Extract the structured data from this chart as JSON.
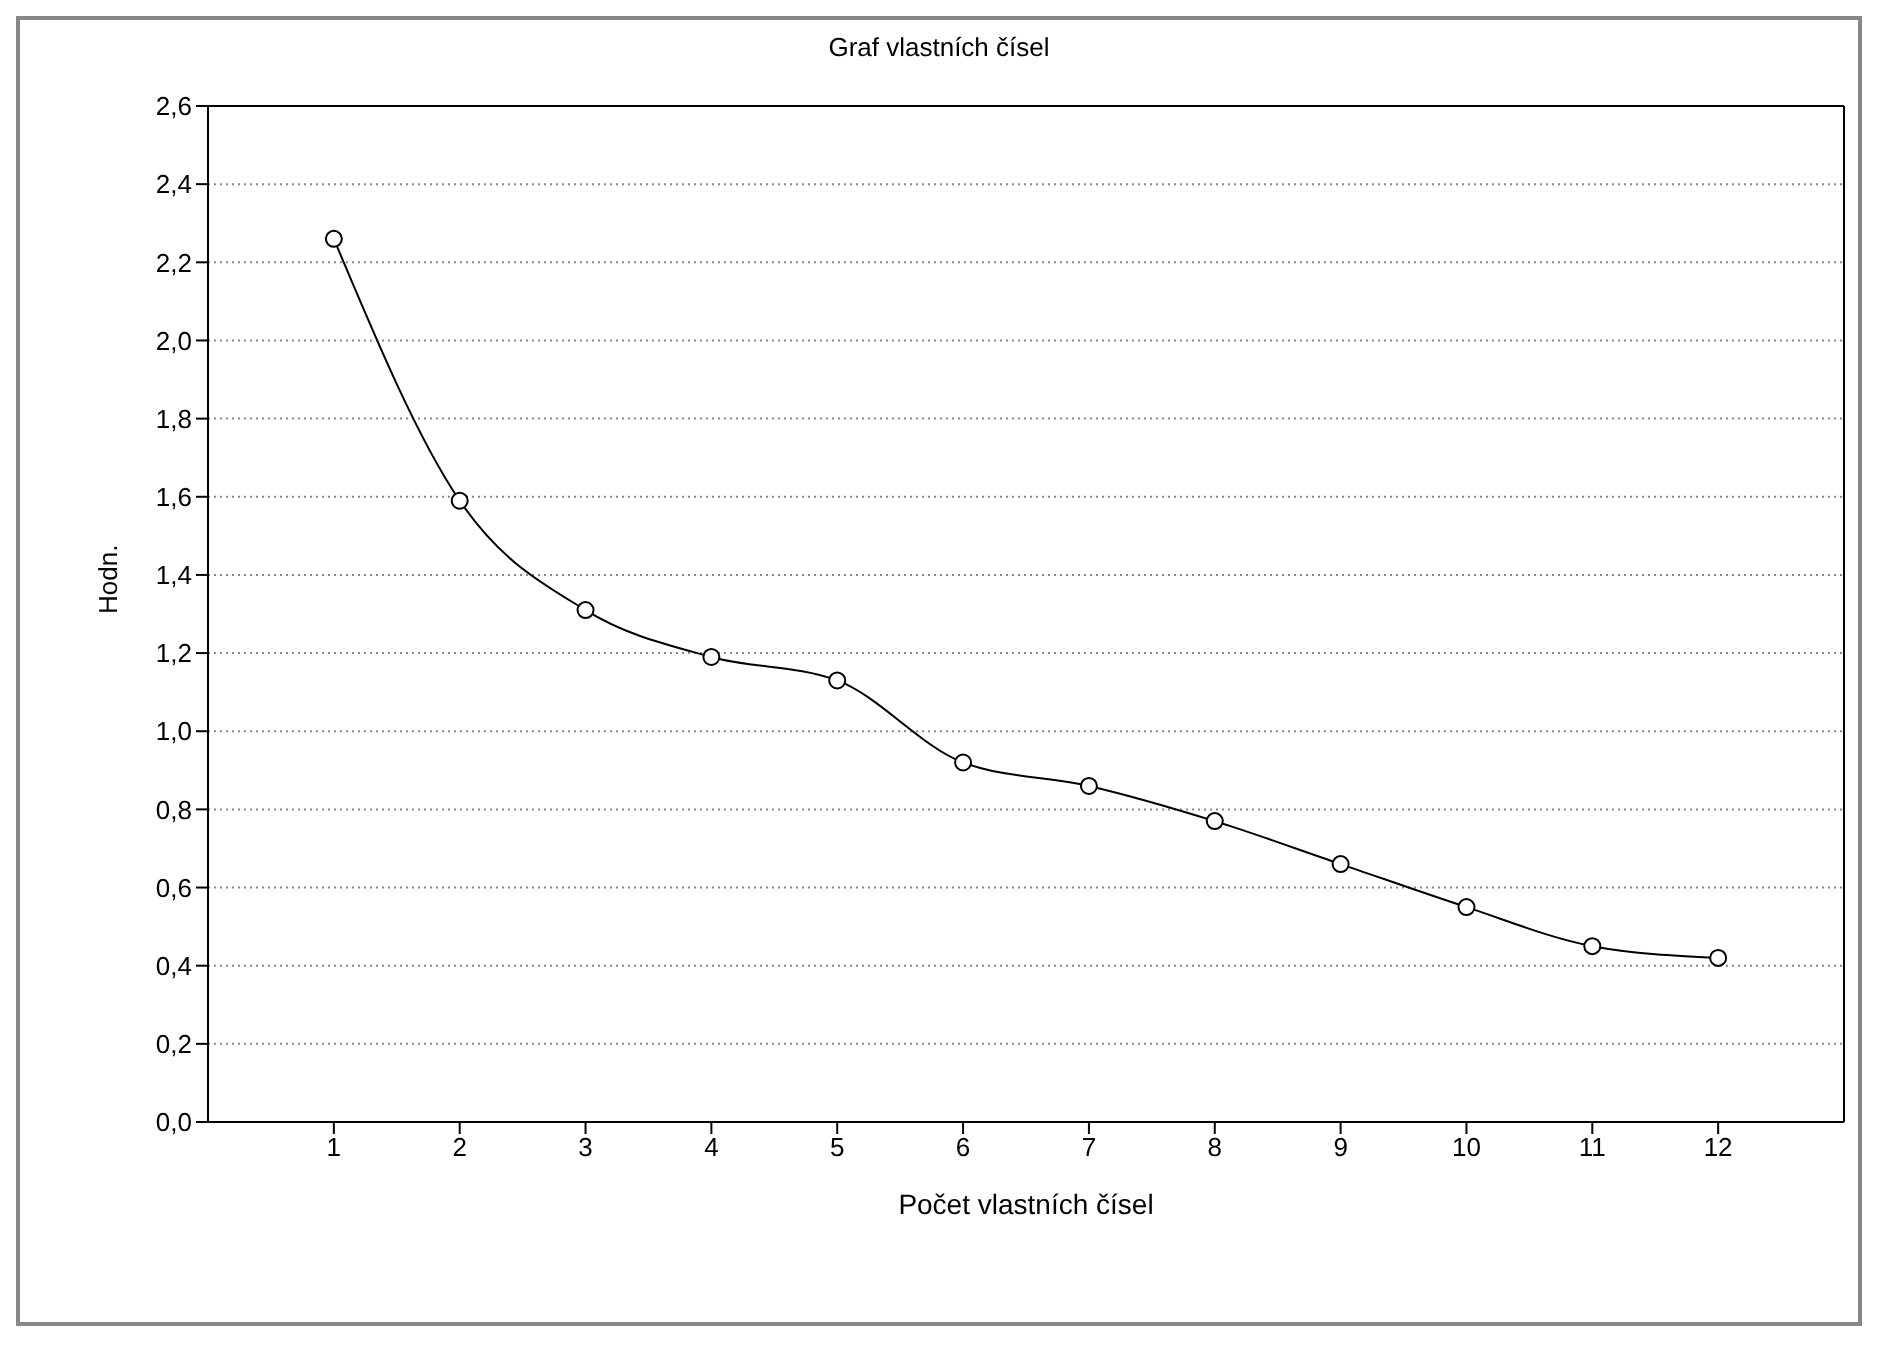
{
  "chart_data": {
    "type": "line",
    "title": "Graf vlastních čísel",
    "xlabel": "Počet vlastních čísel",
    "ylabel": "Hodn.",
    "x": [
      1,
      2,
      3,
      4,
      5,
      6,
      7,
      8,
      9,
      10,
      11,
      12
    ],
    "series": [
      {
        "color": "#000000",
        "values": [
          2.26,
          1.59,
          1.31,
          1.19,
          1.13,
          0.92,
          0.86,
          0.77,
          0.66,
          0.55,
          0.45,
          0.42
        ]
      }
    ],
    "xlim": [
      0,
      13
    ],
    "xticks": [
      1,
      2,
      3,
      4,
      5,
      6,
      7,
      8,
      9,
      10,
      11,
      12
    ],
    "ylim": [
      0,
      2.6
    ],
    "yticks": [
      {
        "value": 0,
        "label": "0,0"
      },
      {
        "value": 0.2,
        "label": "0,2"
      },
      {
        "value": 0.4,
        "label": "0,4"
      },
      {
        "value": 0.6,
        "label": "0,6"
      },
      {
        "value": 0.8,
        "label": "0,8"
      },
      {
        "value": 1,
        "label": "1,0"
      },
      {
        "value": 1.2,
        "label": "1,2"
      },
      {
        "value": 1.4,
        "label": "1,4"
      },
      {
        "value": 1.6,
        "label": "1,6"
      },
      {
        "value": 1.8,
        "label": "1,8"
      },
      {
        "value": 2,
        "label": "2,0"
      },
      {
        "value": 2.2,
        "label": "2,2"
      },
      {
        "value": 2.4,
        "label": "2,4"
      },
      {
        "value": 2.6,
        "label": "2,6"
      }
    ],
    "grid": "y",
    "marker": "circle",
    "line_style": "solid"
  }
}
